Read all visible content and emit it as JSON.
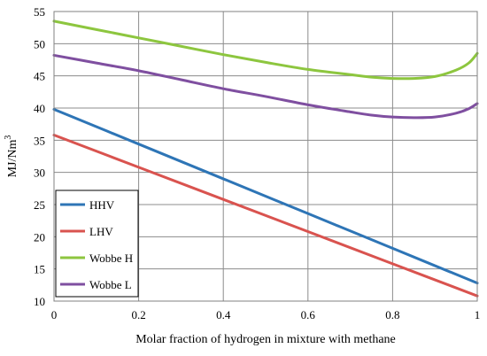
{
  "chart_data": {
    "type": "line",
    "xlabel": "Molar fraction of hydrogen in mixture with methane",
    "ylabel_main": "MJ/Nm",
    "ylabel_sup": "3",
    "xlim": [
      0,
      1
    ],
    "ylim": [
      10,
      55
    ],
    "xticks": [
      0,
      0.2,
      0.4,
      0.6,
      0.8,
      1
    ],
    "xtick_labels": [
      "0",
      "0.2",
      "0.4",
      "0.6",
      "0.8",
      "1"
    ],
    "yticks": [
      10,
      15,
      20,
      25,
      30,
      35,
      40,
      45,
      50,
      55
    ],
    "ytick_labels": [
      "10",
      "15",
      "20",
      "25",
      "30",
      "35",
      "40",
      "45",
      "50",
      "55"
    ],
    "grid": true,
    "legend_placement": "bottom-left",
    "series": [
      {
        "name": "HHV",
        "color": "#2e75b6",
        "x": [
          0,
          0.2,
          0.4,
          0.6,
          0.8,
          1.0
        ],
        "y": [
          39.8,
          34.4,
          29.0,
          23.6,
          18.2,
          12.8
        ]
      },
      {
        "name": "LHV",
        "color": "#d9534f",
        "x": [
          0,
          0.2,
          0.4,
          0.6,
          0.8,
          1.0
        ],
        "y": [
          35.8,
          30.8,
          25.8,
          20.8,
          15.8,
          10.8
        ]
      },
      {
        "name": "Wobbe H",
        "color": "#8dc63f",
        "x": [
          0,
          0.1,
          0.2,
          0.3,
          0.4,
          0.5,
          0.6,
          0.7,
          0.75,
          0.8,
          0.85,
          0.9,
          0.95,
          0.98,
          1.0
        ],
        "y": [
          53.5,
          52.2,
          50.9,
          49.6,
          48.3,
          47.1,
          46.0,
          45.2,
          44.8,
          44.6,
          44.6,
          44.9,
          45.9,
          47.0,
          48.5
        ]
      },
      {
        "name": "Wobbe L",
        "color": "#7f4fa0",
        "x": [
          0,
          0.1,
          0.2,
          0.3,
          0.4,
          0.5,
          0.6,
          0.7,
          0.75,
          0.8,
          0.85,
          0.9,
          0.95,
          0.98,
          1.0
        ],
        "y": [
          48.2,
          47.0,
          45.8,
          44.4,
          43.0,
          41.8,
          40.5,
          39.4,
          38.9,
          38.6,
          38.5,
          38.6,
          39.2,
          39.9,
          40.7
        ]
      }
    ]
  }
}
